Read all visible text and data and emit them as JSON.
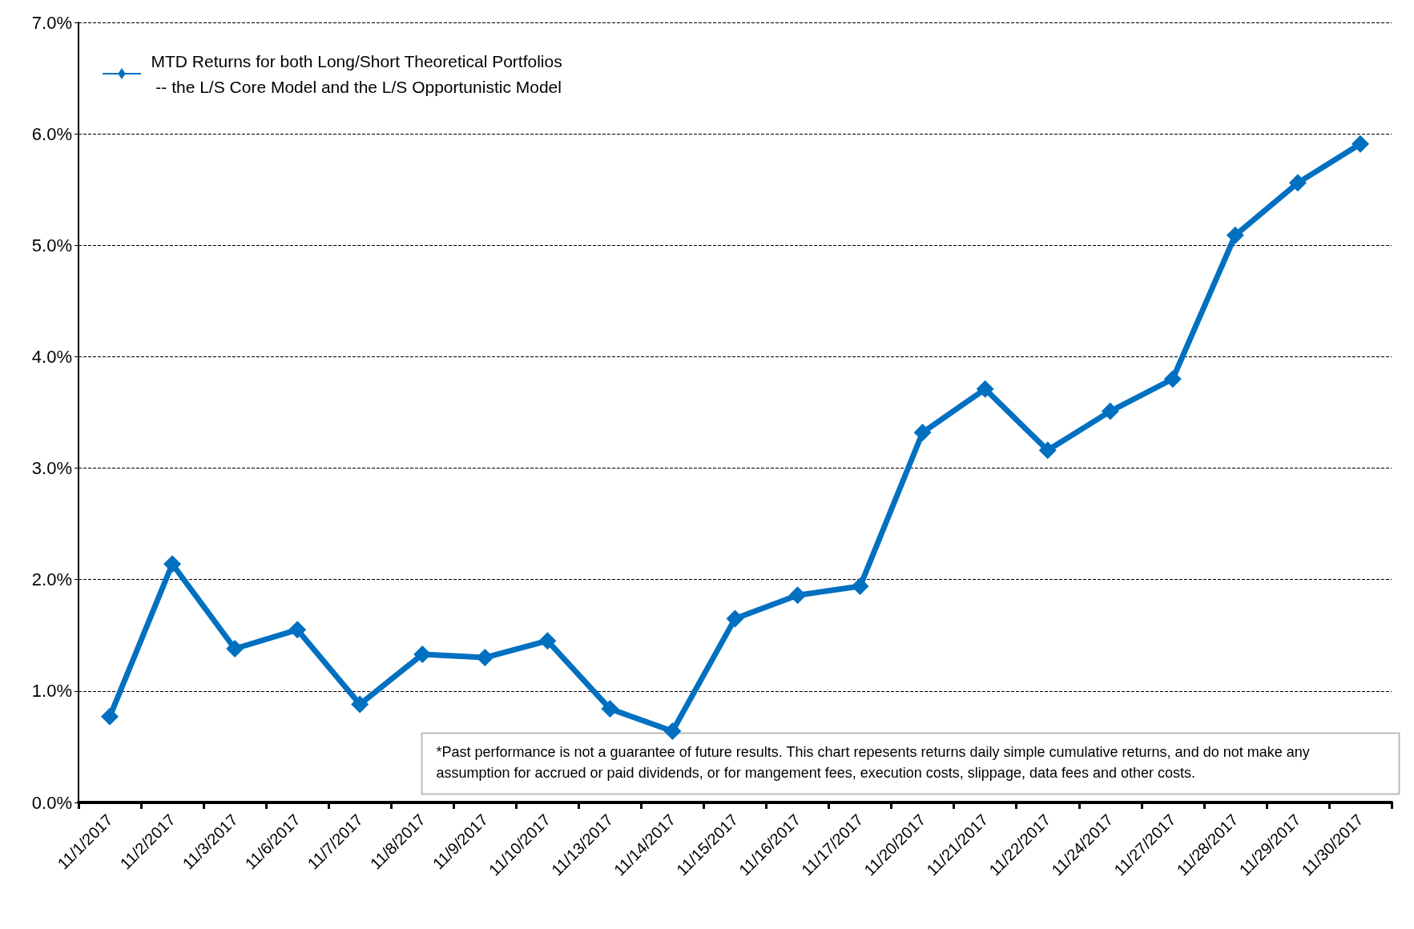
{
  "chart_data": {
    "type": "line",
    "categories": [
      "11/1/2017",
      "11/2/2017",
      "11/3/2017",
      "11/6/2017",
      "11/7/2017",
      "11/8/2017",
      "11/9/2017",
      "11/10/2017",
      "11/13/2017",
      "11/14/2017",
      "11/15/2017",
      "11/16/2017",
      "11/17/2017",
      "11/20/2017",
      "11/21/2017",
      "11/22/2017",
      "11/24/2017",
      "11/27/2017",
      "11/28/2017",
      "11/29/2017",
      "11/30/2017"
    ],
    "series": [
      {
        "name": "MTD Returns for both Long/Short Theoretical Portfolios -- the L/S Core Model and the L/S Opportunistic Model",
        "color": "#0070c0",
        "values": [
          0.77,
          2.14,
          1.38,
          1.55,
          0.88,
          1.33,
          1.3,
          1.45,
          0.84,
          0.64,
          1.65,
          1.86,
          1.94,
          3.32,
          3.71,
          3.16,
          3.51,
          3.8,
          5.09,
          5.56,
          5.91
        ]
      }
    ],
    "ylim": [
      0,
      7
    ],
    "yticks": [
      {
        "value": 0,
        "label": "0.0%"
      },
      {
        "value": 1,
        "label": "1.0%"
      },
      {
        "value": 2,
        "label": "2.0%"
      },
      {
        "value": 3,
        "label": "3.0%"
      },
      {
        "value": 4,
        "label": "4.0%"
      },
      {
        "value": 5,
        "label": "5.0%"
      },
      {
        "value": 6,
        "label": "6.0%"
      },
      {
        "value": 7,
        "label": "7.0%"
      }
    ],
    "grid": "y",
    "legend": "top left",
    "marker": "diamond",
    "line_style": "solid",
    "annotations": [
      "*Past performance is not a guarantee of future results. This chart repesents returns daily simple cumulative returns, and do not make any assumption for accrued or paid dividends, or for mangement fees, execution costs, slippage, data fees and other costs."
    ]
  }
}
